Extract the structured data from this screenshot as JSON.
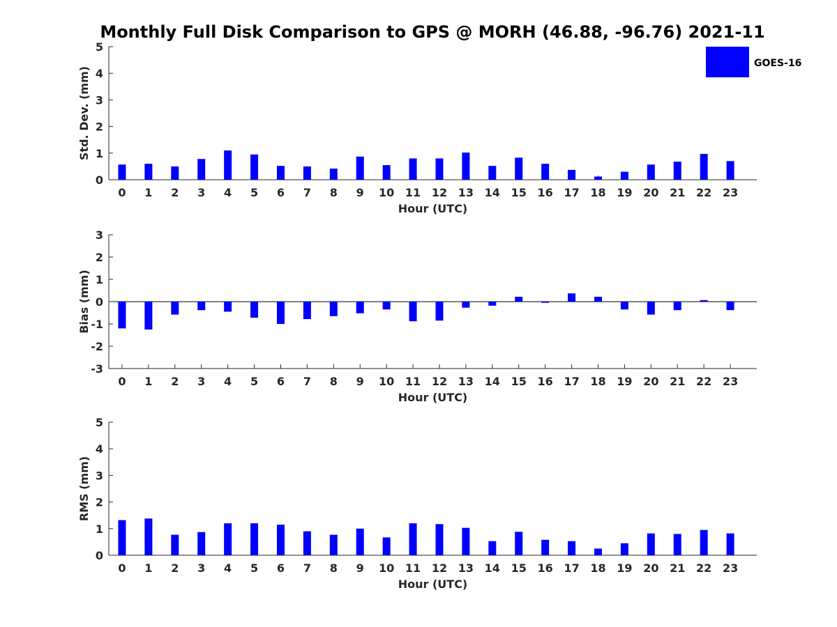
{
  "figure": {
    "title": "Monthly Full Disk Comparison to GPS @ MORH (46.88, -96.76) 2021-11",
    "legend": {
      "label": "GOES-16",
      "color": "#0000FF"
    }
  },
  "chart_data": [
    {
      "type": "bar",
      "name": "std-dev",
      "ylabel": "Std. Dev. (mm)",
      "xlabel": "Hour (UTC)",
      "ylim": [
        0,
        5
      ],
      "yticks": [
        0,
        1,
        2,
        3,
        4,
        5
      ],
      "categories": [
        "0",
        "1",
        "2",
        "3",
        "4",
        "5",
        "6",
        "7",
        "8",
        "9",
        "10",
        "11",
        "12",
        "13",
        "14",
        "15",
        "16",
        "17",
        "18",
        "19",
        "20",
        "21",
        "22",
        "23"
      ],
      "series": [
        {
          "values": [
            0.57,
            0.6,
            0.5,
            0.78,
            1.1,
            0.95,
            0.52,
            0.5,
            0.42,
            0.87,
            0.55,
            0.8,
            0.8,
            1.02,
            0.52,
            0.83,
            0.6,
            0.37,
            0.12,
            0.3,
            0.57,
            0.68,
            0.97,
            0.7
          ]
        }
      ],
      "color": "#0000FF",
      "legend": "top-right"
    },
    {
      "type": "bar",
      "name": "bias",
      "ylabel": "Bias (mm)",
      "xlabel": "Hour (UTC)",
      "ylim": [
        -3,
        3
      ],
      "yticks": [
        -3,
        -2,
        -1,
        0,
        1,
        2,
        3
      ],
      "categories": [
        "0",
        "1",
        "2",
        "3",
        "4",
        "5",
        "6",
        "7",
        "8",
        "9",
        "10",
        "11",
        "12",
        "13",
        "14",
        "15",
        "16",
        "17",
        "18",
        "19",
        "20",
        "21",
        "22",
        "23"
      ],
      "series": [
        {
          "values": [
            -1.2,
            -1.25,
            -0.58,
            -0.38,
            -0.45,
            -0.72,
            -1.0,
            -0.78,
            -0.65,
            -0.52,
            -0.35,
            -0.88,
            -0.85,
            -0.27,
            -0.18,
            0.22,
            -0.05,
            0.37,
            0.22,
            -0.35,
            -0.58,
            -0.38,
            0.07,
            -0.38
          ]
        }
      ],
      "color": "#0000FF",
      "zero_line": true
    },
    {
      "type": "bar",
      "name": "rms",
      "ylabel": "RMS (mm)",
      "xlabel": "Hour (UTC)",
      "ylim": [
        0,
        5
      ],
      "yticks": [
        0,
        1,
        2,
        3,
        4,
        5
      ],
      "categories": [
        "0",
        "1",
        "2",
        "3",
        "4",
        "5",
        "6",
        "7",
        "8",
        "9",
        "10",
        "11",
        "12",
        "13",
        "14",
        "15",
        "16",
        "17",
        "18",
        "19",
        "20",
        "21",
        "22",
        "23"
      ],
      "series": [
        {
          "values": [
            1.32,
            1.38,
            0.77,
            0.87,
            1.2,
            1.2,
            1.15,
            0.9,
            0.77,
            1.0,
            0.67,
            1.2,
            1.17,
            1.03,
            0.53,
            0.88,
            0.58,
            0.53,
            0.25,
            0.45,
            0.82,
            0.8,
            0.95,
            0.82
          ]
        }
      ],
      "color": "#0000FF"
    }
  ]
}
